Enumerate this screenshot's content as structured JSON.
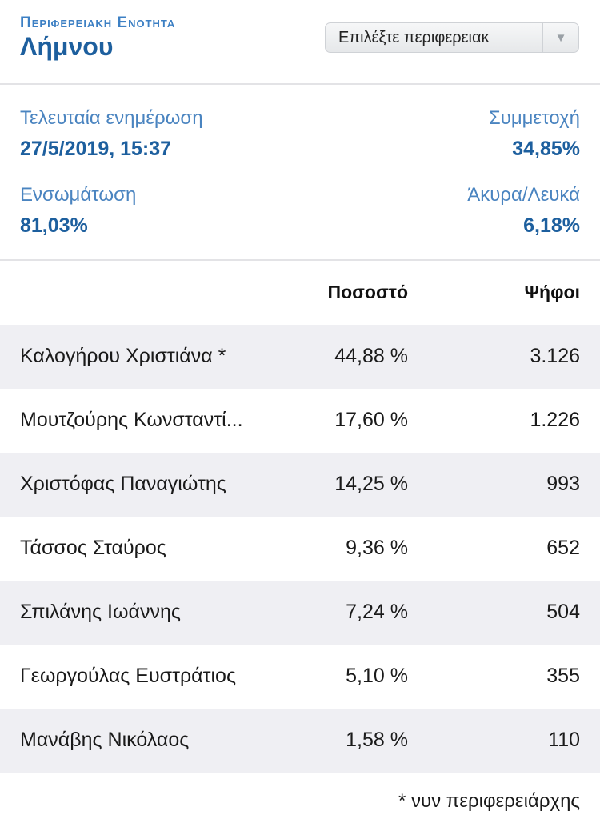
{
  "header": {
    "region_label": "Περιφερειακη Ενοτητα",
    "region_name": "Λήμνου",
    "select_text": "Επιλέξτε περιφερειακ"
  },
  "stats": {
    "last_update_label": "Τελευταία ενημέρωση",
    "last_update_value": "27/5/2019, 15:37",
    "turnout_label": "Συμμετοχή",
    "turnout_value": "34,85%",
    "integration_label": "Ενσωμάτωση",
    "integration_value": "81,03%",
    "invalid_label": "Άκυρα/Λευκά",
    "invalid_value": "6,18%"
  },
  "table": {
    "col_percent": "Ποσοστό",
    "col_votes": "Ψήφοι",
    "rows": [
      {
        "name": "Καλογήρου Χριστιάνα *",
        "percent": "44,88 %",
        "votes": "3.126"
      },
      {
        "name": "Μουτζούρης Κωνσταντί...",
        "percent": "17,60 %",
        "votes": "1.226"
      },
      {
        "name": "Χριστόφας Παναγιώτης",
        "percent": "14,25 %",
        "votes": "993"
      },
      {
        "name": "Τάσσος Σταύρος",
        "percent": "9,36 %",
        "votes": "652"
      },
      {
        "name": "Σπιλάνης Ιωάννης",
        "percent": "7,24 %",
        "votes": "504"
      },
      {
        "name": "Γεωργούλας Ευστράτιος",
        "percent": "5,10 %",
        "votes": "355"
      },
      {
        "name": "Μανάβης Νικόλαος",
        "percent": "1,58 %",
        "votes": "110"
      }
    ]
  },
  "footnote": "* νυν περιφερειάρχης",
  "colors": {
    "accent": "#1d5f9e",
    "label_blue": "#4a84c0",
    "row_alt": "#efeff3"
  }
}
